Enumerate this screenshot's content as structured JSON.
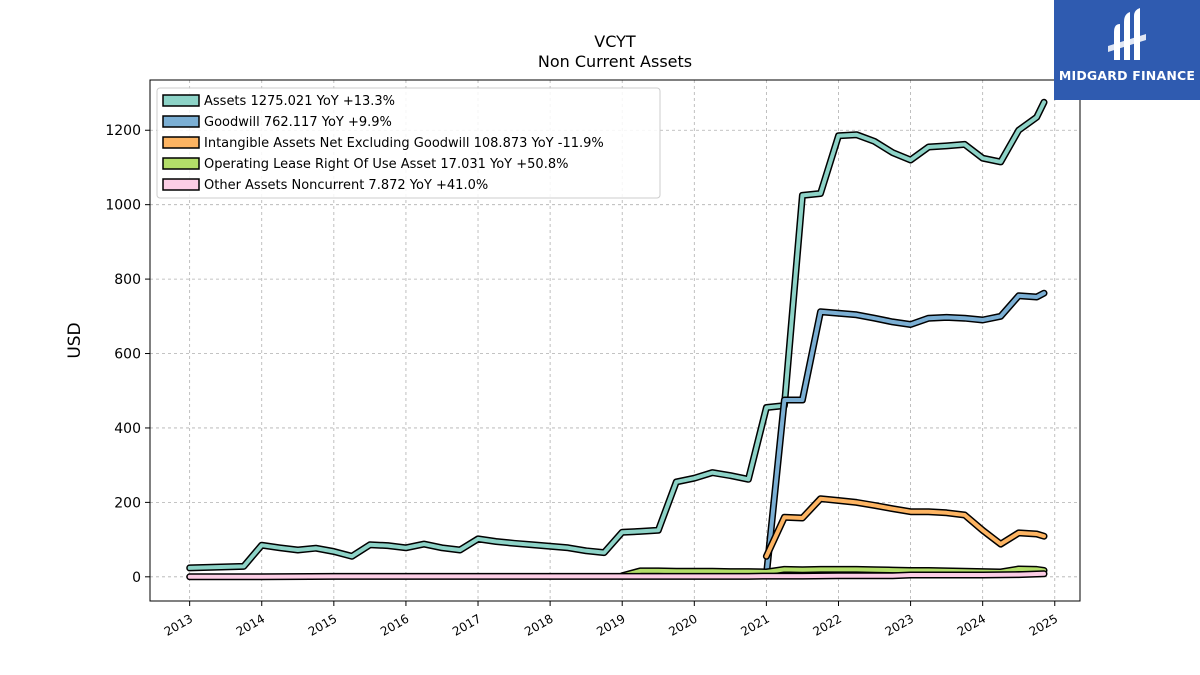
{
  "brand": {
    "name": "MIDGARD FINANCE",
    "icon": "midgard-logo-icon",
    "color": "#2f5bb0"
  },
  "chart_data": {
    "type": "line",
    "title": "VCYT",
    "subtitle": "Non Current  Assets",
    "ylabel": "USD",
    "xlabel": "",
    "xlim": [
      2012.45,
      2025.35
    ],
    "ylim": [
      -65,
      1335
    ],
    "x_ticks": [
      "2013",
      "2014",
      "2015",
      "2016",
      "2017",
      "2018",
      "2019",
      "2020",
      "2021",
      "2022",
      "2023",
      "2024",
      "2025"
    ],
    "y_ticks": [
      "0",
      "200",
      "400",
      "600",
      "800",
      "1000",
      "1200"
    ],
    "grid": true,
    "legend_position": "top-left",
    "series": [
      {
        "name": "Assets",
        "legend_label": "Assets  1275.021 YoY +13.3%",
        "color": "#8dd3c7",
        "points": [
          [
            2013.0,
            24
          ],
          [
            2013.75,
            28
          ],
          [
            2014.0,
            85
          ],
          [
            2014.25,
            78
          ],
          [
            2014.5,
            72
          ],
          [
            2014.75,
            77
          ],
          [
            2015.0,
            68
          ],
          [
            2015.25,
            55
          ],
          [
            2015.5,
            86
          ],
          [
            2015.75,
            84
          ],
          [
            2016.0,
            78
          ],
          [
            2016.25,
            88
          ],
          [
            2016.5,
            78
          ],
          [
            2016.75,
            72
          ],
          [
            2017.0,
            102
          ],
          [
            2017.25,
            95
          ],
          [
            2017.5,
            90
          ],
          [
            2017.75,
            86
          ],
          [
            2018.0,
            82
          ],
          [
            2018.25,
            78
          ],
          [
            2018.5,
            70
          ],
          [
            2018.75,
            65
          ],
          [
            2019.0,
            120
          ],
          [
            2019.25,
            122
          ],
          [
            2019.5,
            125
          ],
          [
            2019.75,
            255
          ],
          [
            2020.0,
            265
          ],
          [
            2020.25,
            280
          ],
          [
            2020.5,
            272
          ],
          [
            2020.75,
            262
          ],
          [
            2021.0,
            455
          ],
          [
            2021.25,
            460
          ],
          [
            2021.5,
            1025
          ],
          [
            2021.75,
            1030
          ],
          [
            2022.0,
            1185
          ],
          [
            2022.25,
            1188
          ],
          [
            2022.5,
            1170
          ],
          [
            2022.75,
            1140
          ],
          [
            2023.0,
            1120
          ],
          [
            2023.25,
            1155
          ],
          [
            2023.5,
            1158
          ],
          [
            2023.75,
            1162
          ],
          [
            2024.0,
            1125
          ],
          [
            2024.25,
            1115
          ],
          [
            2024.5,
            1200
          ],
          [
            2024.75,
            1235
          ],
          [
            2024.85,
            1275
          ]
        ]
      },
      {
        "name": "Goodwill",
        "legend_label": "Goodwill  762.117 YoY +9.9%",
        "color": "#7bafd4",
        "points": [
          [
            2021.0,
            5
          ],
          [
            2021.25,
            475
          ],
          [
            2021.5,
            475
          ],
          [
            2021.75,
            712
          ],
          [
            2022.0,
            708
          ],
          [
            2022.25,
            704
          ],
          [
            2022.5,
            695
          ],
          [
            2022.75,
            685
          ],
          [
            2023.0,
            678
          ],
          [
            2023.25,
            695
          ],
          [
            2023.5,
            697
          ],
          [
            2023.75,
            695
          ],
          [
            2024.0,
            690
          ],
          [
            2024.25,
            700
          ],
          [
            2024.5,
            755
          ],
          [
            2024.75,
            752
          ],
          [
            2024.85,
            762
          ]
        ]
      },
      {
        "name": "Intangible Assets Net Excluding Goodwill",
        "legend_label": "Intangible Assets Net Excluding Goodwill  108.873 YoY -11.9%",
        "color": "#fdb462",
        "points": [
          [
            2021.0,
            55
          ],
          [
            2021.25,
            160
          ],
          [
            2021.5,
            158
          ],
          [
            2021.75,
            210
          ],
          [
            2022.0,
            205
          ],
          [
            2022.25,
            200
          ],
          [
            2022.5,
            192
          ],
          [
            2022.75,
            183
          ],
          [
            2023.0,
            175
          ],
          [
            2023.25,
            175
          ],
          [
            2023.5,
            172
          ],
          [
            2023.75,
            166
          ],
          [
            2024.0,
            125
          ],
          [
            2024.25,
            88
          ],
          [
            2024.5,
            118
          ],
          [
            2024.75,
            115
          ],
          [
            2024.85,
            109
          ]
        ]
      },
      {
        "name": "Operating Lease Right Of Use Asset",
        "legend_label": "Operating Lease Right Of Use Asset  17.031 YoY +50.8%",
        "color": "#b3de69",
        "points": [
          [
            2019.0,
            3
          ],
          [
            2019.25,
            16
          ],
          [
            2019.5,
            16
          ],
          [
            2019.75,
            15
          ],
          [
            2020.0,
            15
          ],
          [
            2020.25,
            15
          ],
          [
            2020.5,
            14
          ],
          [
            2020.75,
            14
          ],
          [
            2021.0,
            13
          ],
          [
            2021.25,
            20
          ],
          [
            2021.5,
            19
          ],
          [
            2021.75,
            20
          ],
          [
            2022.0,
            20
          ],
          [
            2022.25,
            20
          ],
          [
            2022.5,
            19
          ],
          [
            2022.75,
            18
          ],
          [
            2023.0,
            17
          ],
          [
            2023.25,
            17
          ],
          [
            2023.5,
            16
          ],
          [
            2023.75,
            15
          ],
          [
            2024.0,
            14
          ],
          [
            2024.25,
            13
          ],
          [
            2024.5,
            21
          ],
          [
            2024.75,
            20
          ],
          [
            2024.85,
            17
          ]
        ]
      },
      {
        "name": "Other Assets Noncurrent",
        "legend_label": "Other Assets Noncurrent  7.872 YoY +41.0%",
        "color": "#fccde5",
        "points": [
          [
            2013.0,
            0
          ],
          [
            2014.0,
            0
          ],
          [
            2015.0,
            1
          ],
          [
            2016.0,
            1
          ],
          [
            2017.0,
            1
          ],
          [
            2018.0,
            1
          ],
          [
            2019.0,
            1
          ],
          [
            2020.0,
            1
          ],
          [
            2020.75,
            1
          ],
          [
            2021.0,
            2
          ],
          [
            2021.5,
            2
          ],
          [
            2022.0,
            3
          ],
          [
            2022.5,
            3
          ],
          [
            2022.75,
            3
          ],
          [
            2023.0,
            5
          ],
          [
            2023.5,
            5
          ],
          [
            2024.0,
            5
          ],
          [
            2024.5,
            6
          ],
          [
            2024.85,
            8
          ]
        ]
      }
    ]
  }
}
